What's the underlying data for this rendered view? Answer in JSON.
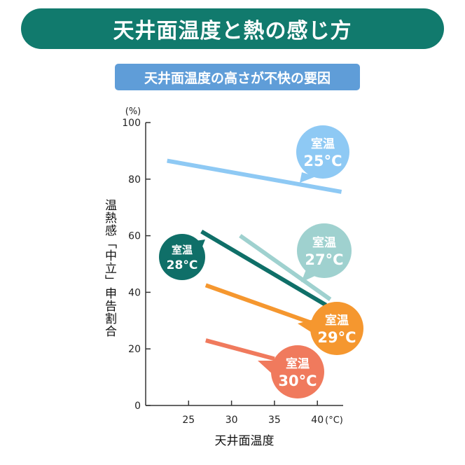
{
  "header": {
    "title": "天井面温度と熱の感じ方",
    "subtitle": "天井面温度の高さが不快の要因"
  },
  "chart_data": {
    "type": "line",
    "title": "天井面温度と熱の感じ方",
    "subtitle": "天井面温度の高さが不快の要因",
    "xlabel": "天井面温度",
    "ylabel": "温熱感「中立」申告割合",
    "x_unit": "(°C)",
    "y_unit": "(%)",
    "xlim": [
      20,
      43
    ],
    "ylim": [
      0,
      100
    ],
    "x_ticks": [
      "25",
      "30",
      "35",
      "40"
    ],
    "y_ticks": [
      "0",
      "20",
      "40",
      "60",
      "80",
      "100"
    ],
    "grid": false,
    "series": [
      {
        "name": "室温25°C",
        "label_top": "室温",
        "label_bottom": "25°C",
        "color": "#8ec9f4",
        "x": [
          22.5,
          42.8
        ],
        "y": [
          86.5,
          75.5
        ]
      },
      {
        "name": "室温27°C",
        "label_top": "室温",
        "label_bottom": "27°C",
        "color": "#9fd1cf",
        "x": [
          31,
          41.5
        ],
        "y": [
          60,
          37.5
        ]
      },
      {
        "name": "室温28°C",
        "label_top": "室温",
        "label_bottom": "28°C",
        "color": "#0f6f68",
        "x": [
          26.5,
          41
        ],
        "y": [
          61.5,
          35.5
        ]
      },
      {
        "name": "室温29°C",
        "label_top": "室温",
        "label_bottom": "29°C",
        "color": "#f5972f",
        "x": [
          27,
          39.5
        ],
        "y": [
          42.5,
          29
        ]
      },
      {
        "name": "室温30°C",
        "label_top": "室温",
        "label_bottom": "30°C",
        "color": "#f07a5d",
        "x": [
          27,
          35
        ],
        "y": [
          23,
          16.5
        ]
      }
    ]
  }
}
